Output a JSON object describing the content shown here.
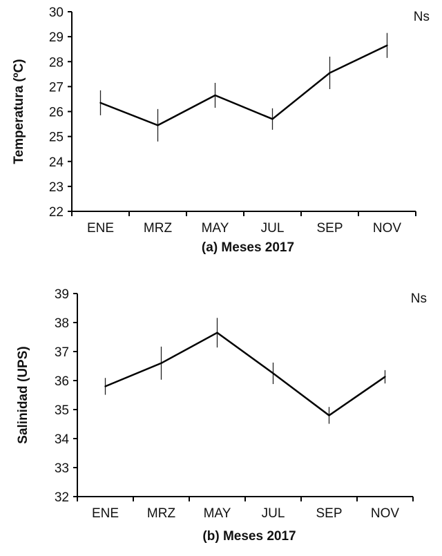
{
  "chart_data": [
    {
      "type": "line",
      "title": "",
      "xlabel": "(a) Meses 2017",
      "ylabel": "Temperatura (ºC)",
      "annotation": "Ns",
      "categories": [
        "ENE",
        "MRZ",
        "MAY",
        "JUL",
        "SEP",
        "NOV"
      ],
      "series": [
        {
          "name": "Temperatura",
          "values": [
            26.35,
            25.45,
            26.65,
            25.7,
            27.55,
            28.65
          ],
          "error": [
            0.5,
            0.65,
            0.5,
            0.43,
            0.65,
            0.5
          ]
        }
      ],
      "ylim": [
        22,
        30
      ],
      "yticks": [
        22,
        23,
        24,
        25,
        26,
        27,
        28,
        29,
        30
      ],
      "grid": false
    },
    {
      "type": "line",
      "title": "",
      "xlabel": "(b) Meses 2017",
      "ylabel": "Salinidad (UPS)",
      "annotation": "Ns",
      "categories": [
        "ENE",
        "MRZ",
        "MAY",
        "JUL",
        "SEP",
        "NOV"
      ],
      "series": [
        {
          "name": "Salinidad",
          "values": [
            35.8,
            36.6,
            37.65,
            36.25,
            34.8,
            36.13
          ],
          "error": [
            0.29,
            0.57,
            0.51,
            0.37,
            0.29,
            0.23
          ]
        }
      ],
      "ylim": [
        32,
        39
      ],
      "yticks": [
        32,
        33,
        34,
        35,
        36,
        37,
        38,
        39
      ],
      "grid": false
    }
  ]
}
